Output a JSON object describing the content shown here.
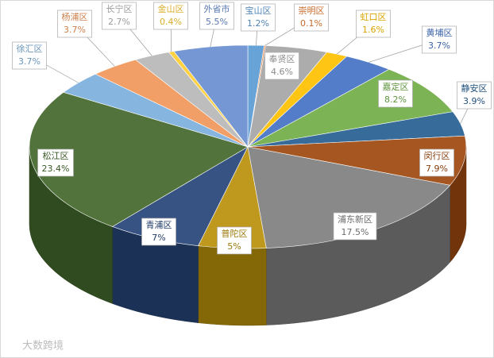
{
  "chart_data": {
    "type": "pie3d",
    "watermark": "大数跨境",
    "categories": [
      "宝山区",
      "崇明区",
      "奉贤区",
      "虹口区",
      "黄埔区",
      "嘉定区",
      "静安区",
      "闵行区",
      "浦东新区",
      "普陀区",
      "青浦区",
      "松江区",
      "徐汇区",
      "杨浦区",
      "长宁区",
      "金山区",
      "外省市"
    ],
    "values": [
      1.2,
      0.1,
      4.6,
      1.6,
      3.7,
      8.2,
      3.9,
      7.9,
      17.5,
      5,
      7,
      23.4,
      3.7,
      3.7,
      2.7,
      0.4,
      5.5
    ],
    "value_labels": [
      "1.2%",
      "0.1%",
      "4.6%",
      "1.6%",
      "3.7%",
      "8.2%",
      "3.9%",
      "7.9%",
      "17.5%",
      "5%",
      "7%",
      "23.4%",
      "3.7%",
      "3.7%",
      "2.7%",
      "0.4%",
      "5.5%"
    ],
    "colors": [
      "#5b9bd5",
      "#ed7d31",
      "#a5a5a5",
      "#ffc000",
      "#4472c4",
      "#70ad47",
      "#255e91",
      "#9e480e",
      "#7f7f7f",
      "#b8900b",
      "#264478",
      "#43682b",
      "#7cafdd",
      "#f1975a",
      "#b7b7b7",
      "#ffcd33",
      "#698ed0"
    ]
  }
}
